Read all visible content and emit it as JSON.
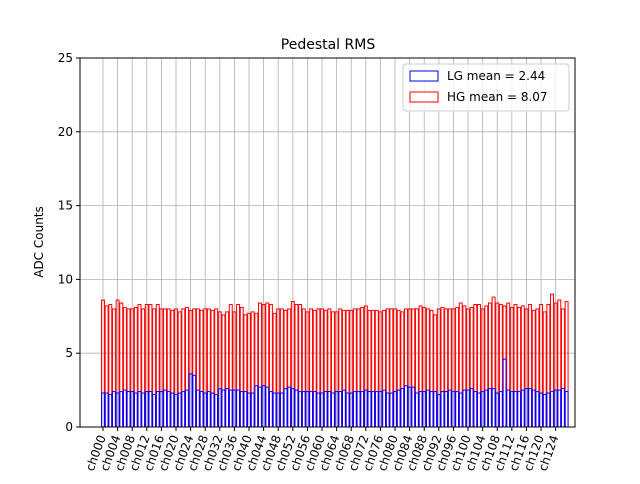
{
  "chart_data": {
    "type": "bar",
    "title": "Pedestal RMS",
    "y_label": "ADC Counts",
    "categories": [
      "ch000",
      null,
      null,
      null,
      "ch004",
      null,
      null,
      null,
      "ch008",
      null,
      null,
      null,
      "ch012",
      null,
      null,
      null,
      "ch016",
      null,
      null,
      null,
      "ch020",
      null,
      null,
      null,
      "ch024",
      null,
      null,
      null,
      "ch028",
      null,
      null,
      null,
      "ch032",
      null,
      null,
      null,
      "ch036",
      null,
      null,
      null,
      "ch040",
      null,
      null,
      null,
      "ch044",
      null,
      null,
      null,
      "ch048",
      null,
      null,
      null,
      "ch052",
      null,
      null,
      null,
      "ch056",
      null,
      null,
      null,
      "ch060",
      null,
      null,
      null,
      "ch064",
      null,
      null,
      null,
      "ch068",
      null,
      null,
      null,
      "ch072",
      null,
      null,
      null,
      "ch076",
      null,
      null,
      null,
      "ch080",
      null,
      null,
      null,
      "ch084",
      null,
      null,
      null,
      "ch088",
      null,
      null,
      null,
      "ch092",
      null,
      null,
      null,
      "ch096",
      null,
      null,
      null,
      "ch100",
      null,
      null,
      null,
      "ch104",
      null,
      null,
      null,
      "ch108",
      null,
      null,
      null,
      "ch112",
      null,
      null,
      null,
      "ch116",
      null,
      null,
      null,
      "ch120",
      null,
      null,
      null,
      "ch124",
      null,
      null,
      null
    ],
    "series": [
      {
        "name": "HG mean = 8.07",
        "color": "#ff0000",
        "values": [
          8.6,
          8.2,
          8.3,
          8.0,
          8.6,
          8.4,
          8.1,
          8.0,
          8.0,
          8.1,
          8.3,
          8.0,
          8.3,
          8.3,
          8.0,
          8.3,
          8.0,
          8.0,
          8.0,
          7.9,
          8.0,
          7.8,
          8.0,
          8.1,
          7.9,
          8.0,
          8.0,
          7.9,
          8.0,
          8.0,
          7.9,
          8.0,
          7.8,
          7.6,
          7.8,
          8.3,
          7.8,
          8.3,
          8.1,
          7.6,
          7.7,
          7.8,
          7.7,
          8.4,
          8.3,
          8.4,
          8.3,
          7.7,
          8.0,
          8.0,
          7.9,
          8.0,
          8.5,
          8.3,
          8.3,
          8.0,
          7.8,
          8.0,
          7.9,
          8.0,
          8.0,
          7.9,
          8.0,
          7.8,
          7.8,
          8.0,
          7.9,
          7.9,
          7.9,
          8.0,
          8.0,
          8.1,
          8.2,
          7.9,
          7.9,
          7.9,
          7.8,
          7.9,
          8.0,
          8.0,
          8.0,
          7.9,
          7.8,
          8.0,
          8.0,
          8.0,
          8.0,
          8.2,
          8.1,
          8.0,
          7.9,
          7.6,
          8.0,
          8.1,
          8.0,
          8.0,
          8.0,
          8.1,
          8.4,
          8.2,
          8.0,
          8.1,
          8.3,
          8.3,
          8.0,
          8.2,
          8.4,
          8.8,
          8.4,
          8.3,
          8.2,
          8.4,
          8.1,
          8.3,
          8.1,
          8.2,
          8.0,
          8.3,
          7.9,
          8.0,
          8.3,
          7.8,
          8.3,
          9.0,
          8.4,
          8.6,
          8.0,
          8.5
        ]
      },
      {
        "name": "LG mean = 2.44",
        "color": "#0000ff",
        "values": [
          2.3,
          2.3,
          2.2,
          2.4,
          2.3,
          2.4,
          2.5,
          2.4,
          2.4,
          2.3,
          2.4,
          2.3,
          2.4,
          2.4,
          2.2,
          2.4,
          2.4,
          2.5,
          2.4,
          2.3,
          2.2,
          2.3,
          2.4,
          2.5,
          3.6,
          3.5,
          2.5,
          2.4,
          2.3,
          2.4,
          2.3,
          2.2,
          2.6,
          2.5,
          2.6,
          2.5,
          2.5,
          2.5,
          2.4,
          2.4,
          2.3,
          2.3,
          2.8,
          2.7,
          2.8,
          2.7,
          2.4,
          2.3,
          2.3,
          2.3,
          2.6,
          2.7,
          2.6,
          2.5,
          2.4,
          2.4,
          2.4,
          2.4,
          2.4,
          2.3,
          2.3,
          2.4,
          2.4,
          2.3,
          2.4,
          2.4,
          2.5,
          2.3,
          2.3,
          2.4,
          2.4,
          2.4,
          2.5,
          2.4,
          2.4,
          2.4,
          2.4,
          2.5,
          2.3,
          2.3,
          2.4,
          2.5,
          2.6,
          2.8,
          2.7,
          2.7,
          2.3,
          2.4,
          2.4,
          2.5,
          2.4,
          2.4,
          2.2,
          2.4,
          2.4,
          2.5,
          2.4,
          2.4,
          2.3,
          2.5,
          2.5,
          2.6,
          2.4,
          2.3,
          2.4,
          2.5,
          2.6,
          2.6,
          2.3,
          2.4,
          4.6,
          2.5,
          2.4,
          2.4,
          2.4,
          2.5,
          2.6,
          2.6,
          2.5,
          2.4,
          2.3,
          2.2,
          2.3,
          2.4,
          2.5,
          2.5,
          2.6,
          2.4
        ]
      }
    ],
    "ylim": [
      0,
      25
    ],
    "yticks": [
      0,
      5,
      10,
      15,
      20,
      25
    ],
    "grid": true,
    "legend": "upper right"
  }
}
